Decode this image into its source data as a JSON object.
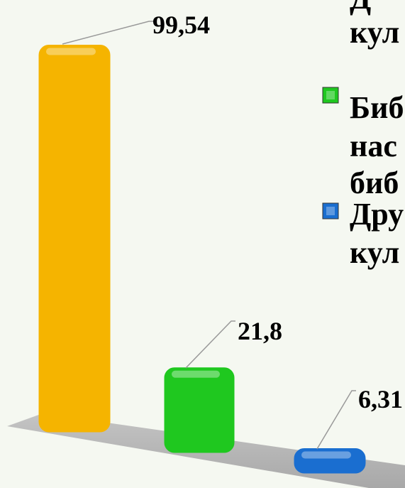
{
  "chart_data": {
    "type": "bar",
    "series": [
      {
        "name": [
          "Д",
          "кул"
        ],
        "color": "#f5b400",
        "values": [
          99.54
        ],
        "value_labels": [
          "99,54"
        ]
      },
      {
        "name": [
          "Биб",
          "нас",
          "биб"
        ],
        "color": "#1fc81f",
        "values": [
          21.8
        ],
        "value_labels": [
          "21,8"
        ]
      },
      {
        "name": [
          "Дру",
          "кул"
        ],
        "color": "#1a6ed0",
        "values": [
          6.31
        ],
        "value_labels": [
          "6,31"
        ]
      }
    ]
  }
}
